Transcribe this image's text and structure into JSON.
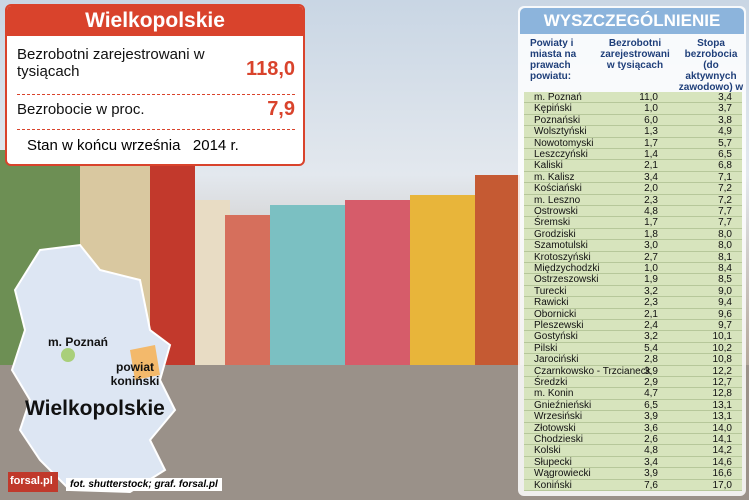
{
  "summary": {
    "title": "Wielkopolskie",
    "rows": [
      {
        "label": "Bezrobotni zarejestrowani w tysiącach",
        "value": "118,0"
      },
      {
        "label": "Bezrobocie w proc.",
        "value": "7,9"
      }
    ],
    "note": "Stan w końcu września   2014 r."
  },
  "map": {
    "labels": [
      "m. Poznań",
      "powiat koniński",
      "Wielkopolskie"
    ]
  },
  "credits": {
    "logo": "forsal.pl",
    "text": "fot. shutterstock; graf. forsal.pl"
  },
  "table": {
    "title": "WYSZCZEGÓLNIENIE",
    "headers": [
      "Powiaty i miasta na prawach powiatu:",
      "Bezrobotni zarejestrowani w tysiącach",
      "Stopa bezrobocia (do aktywnych zawodowo) w %"
    ],
    "rows": [
      [
        "m. Poznań",
        "11,0",
        "3,4"
      ],
      [
        "Kępiński",
        "1,0",
        "3,7"
      ],
      [
        "Poznański",
        "6,0",
        "3,8"
      ],
      [
        "Wolsztyński",
        "1,3",
        "4,9"
      ],
      [
        "Nowotomyski",
        "1,7",
        "5,7"
      ],
      [
        "Leszczyński",
        "1,4",
        "6,5"
      ],
      [
        "Kaliski",
        "2,1",
        "6,8"
      ],
      [
        "m. Kalisz",
        "3,4",
        "7,1"
      ],
      [
        "Kościański",
        "2,0",
        "7,2"
      ],
      [
        "m. Leszno",
        "2,3",
        "7,2"
      ],
      [
        "Ostrowski",
        "4,8",
        "7,7"
      ],
      [
        "Śremski",
        "1,7",
        "7,7"
      ],
      [
        "Grodziski",
        "1,8",
        "8,0"
      ],
      [
        "Szamotulski",
        "3,0",
        "8,0"
      ],
      [
        "Krotoszyński",
        "2,7",
        "8,1"
      ],
      [
        "Międzychodzki",
        "1,0",
        "8,4"
      ],
      [
        "Ostrzeszowski",
        "1,9",
        "8,5"
      ],
      [
        "Turecki",
        "3,2",
        "9,0"
      ],
      [
        "Rawicki",
        "2,3",
        "9,4"
      ],
      [
        "Obornicki",
        "2,1",
        "9,6"
      ],
      [
        "Pleszewski",
        "2,4",
        "9,7"
      ],
      [
        "Gostyński",
        "3,2",
        "10,1"
      ],
      [
        "Pilski",
        "5,4",
        "10,2"
      ],
      [
        "Jarociński",
        "2,8",
        "10,8"
      ],
      [
        "Czarnkowsko - Trzcianeck",
        "3,9",
        "12,2"
      ],
      [
        "Średzki",
        "2,9",
        "12,7"
      ],
      [
        "m. Konin",
        "4,7",
        "12,8"
      ],
      [
        "Gnieźnieński",
        "6,5",
        "13,1"
      ],
      [
        "Wrzesiński",
        "3,9",
        "13,1"
      ],
      [
        "Złotowski",
        "3,6",
        "14,0"
      ],
      [
        "Chodzieski",
        "2,6",
        "14,1"
      ],
      [
        "Kolski",
        "4,8",
        "14,2"
      ],
      [
        "Słupecki",
        "3,4",
        "14,6"
      ],
      [
        "Wągrowiecki",
        "3,9",
        "16,6"
      ],
      [
        "Koniński",
        "7,6",
        "17,0"
      ]
    ]
  }
}
